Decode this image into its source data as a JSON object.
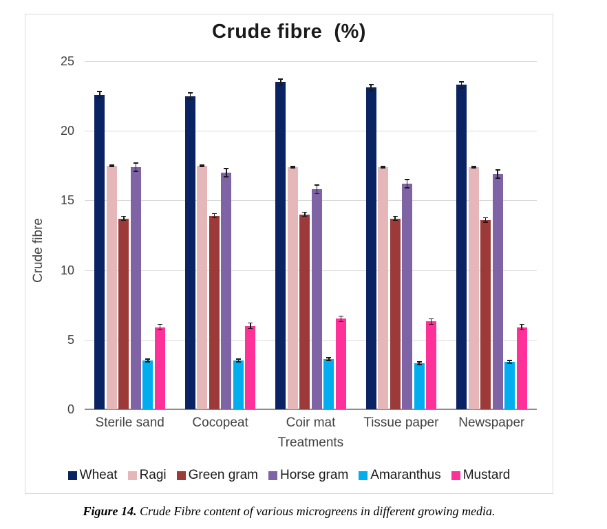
{
  "figure": {
    "caption_prefix": "Figure 14.",
    "caption_text": " Crude Fibre content of various microgreens in different growing media."
  },
  "chart_data": {
    "type": "bar",
    "title": "Crude fibre  (%)",
    "xlabel": "Treatments",
    "ylabel": "Crude fibre",
    "ylim": [
      0,
      25
    ],
    "ytick_step": 5,
    "yticks": [
      0,
      5,
      10,
      15,
      20,
      25
    ],
    "grid": true,
    "legend_position": "bottom",
    "error_bars": true,
    "categories": [
      "Sterile sand",
      "Cocopeat",
      "Coir mat",
      "Tissue paper",
      "Newspaper"
    ],
    "series": [
      {
        "name": "Wheat",
        "color": "#0a2362",
        "error": 0.22,
        "values": [
          22.6,
          22.5,
          23.5,
          23.1,
          23.3
        ]
      },
      {
        "name": "Ragi",
        "color": "#e5b7b9",
        "error": 0.05,
        "values": [
          17.5,
          17.5,
          17.4,
          17.4,
          17.4
        ]
      },
      {
        "name": "Green gram",
        "color": "#9c3a3a",
        "error": 0.15,
        "values": [
          13.7,
          13.9,
          14.0,
          13.7,
          13.6
        ]
      },
      {
        "name": "Horse gram",
        "color": "#7e64a5",
        "error": 0.3,
        "values": [
          17.4,
          17.0,
          15.8,
          16.2,
          16.9
        ]
      },
      {
        "name": "Amaranthus",
        "color": "#00aeef",
        "error": 0.1,
        "values": [
          3.5,
          3.5,
          3.6,
          3.3,
          3.4
        ]
      },
      {
        "name": "Mustard",
        "color": "#ff3098",
        "error": 0.2,
        "values": [
          5.9,
          6.0,
          6.5,
          6.3,
          5.9
        ]
      }
    ],
    "colors": {
      "gridline": "#d9d9d9",
      "axis_line": "#8c8c8c",
      "tick_label": "#424242",
      "title": "#1a1a1a",
      "error_bar": "#1a1a1a"
    }
  }
}
